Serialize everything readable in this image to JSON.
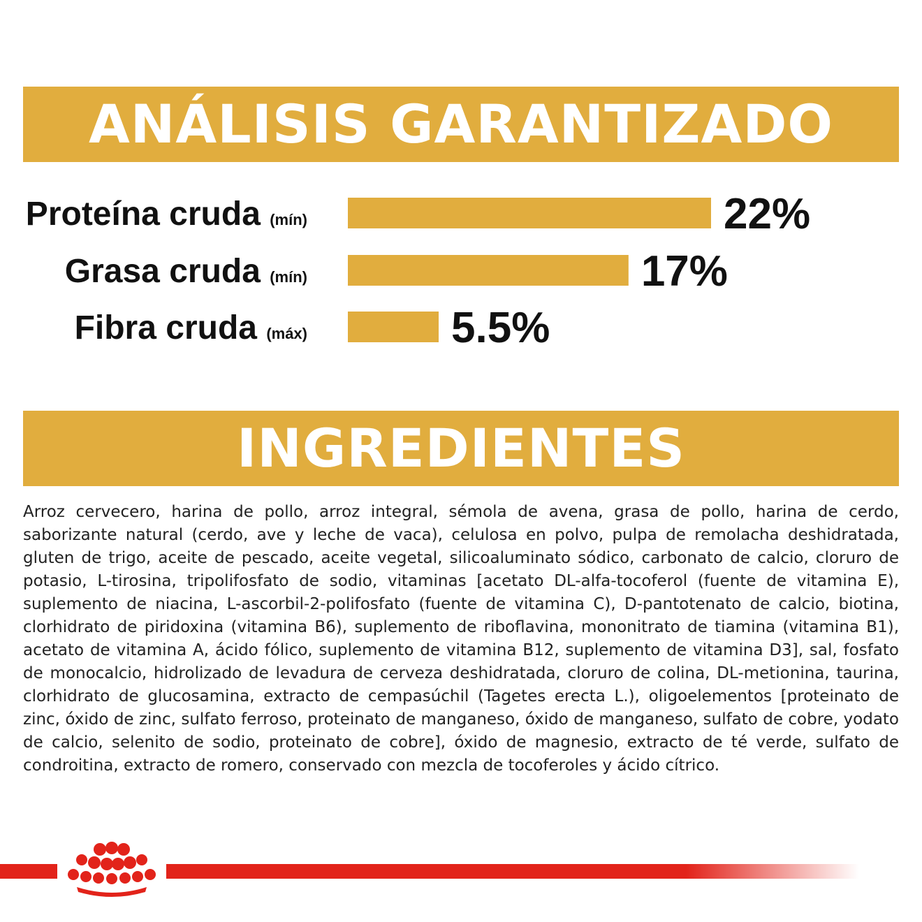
{
  "analysis": {
    "title": "ANÁLISIS GARANTIZADO"
  },
  "chart_data": {
    "type": "bar",
    "orientation": "horizontal",
    "title": "ANÁLISIS GARANTIZADO",
    "categories": [
      "Proteína cruda",
      "Grasa cruda",
      "Fibra cruda"
    ],
    "qualifiers": [
      "(mín)",
      "(mín)",
      "(máx)"
    ],
    "values": [
      22,
      17,
      5.5
    ],
    "value_labels": [
      "22%",
      "17%",
      "5.5%"
    ],
    "unit": "%",
    "xlim": [
      0,
      22
    ],
    "bar_color": "#e1ad3e",
    "grid": false
  },
  "ingredients": {
    "title": "INGREDIENTES",
    "text": "Arroz cervecero, harina de pollo, arroz integral, sémola de avena, grasa de pollo, harina de cerdo, saborizante natural (cerdo, ave y leche de vaca), celulosa en polvo, pulpa de remolacha deshidratada, gluten de trigo, aceite de pescado, aceite vegetal, silicoaluminato sódico, carbonato de calcio, cloruro de potasio, L-tirosina, tripolifosfato de sodio, vitaminas [acetato DL-alfa-tocoferol (fuente de vitamina E), suplemento de niacina, L-ascorbil-2-polifosfato (fuente de vitamina C), D-pantotenato de calcio, biotina, clorhidrato de piridoxina (vitamina B6), suplemento de riboflavina, mononitrato de tiamina (vitamina B1), acetato de vitamina A, ácido fólico, suplemento de vitamina B12, suplemento de vitamina D3], sal, fosfato de monocalcio, hidrolizado de levadura de cerveza deshidratada, cloruro de colina, DL-metionina, taurina, clorhidrato de glucosamina, extracto de cempasúchil (Tagetes erecta L.), oligoelementos [proteinato de zinc, óxido de zinc, sulfato ferroso, proteinato de manganeso, óxido de manganeso, sulfato de cobre, yodato de calcio, selenito de sodio, proteinato de cobre], óxido de magnesio, extracto de té verde, sulfato de condroitina, extracto de romero, conservado con mezcla de tocoferoles y ácido cítrico."
  },
  "footer": {
    "logo_icon": "royal-canin-crown-icon",
    "accent_color": "#e2231a"
  }
}
